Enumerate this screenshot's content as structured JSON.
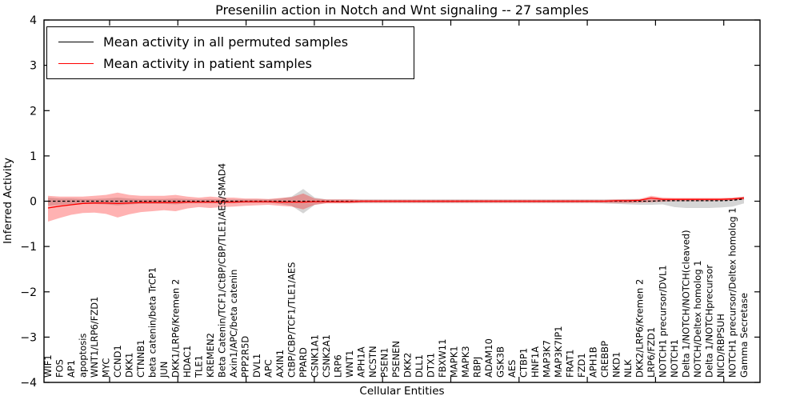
{
  "title": "Presenilin action in Notch and Wnt signaling -- 27 samples",
  "axes": {
    "ylabel": "Inferred Activity",
    "xlabel": "Cellular Entities"
  },
  "legend": {
    "position": "upper left",
    "items": [
      {
        "label": "Mean activity in all permuted samples",
        "color": "#000000"
      },
      {
        "label": "Mean activity in patient samples",
        "color": "#ff0000"
      }
    ]
  },
  "chart_data": {
    "type": "line",
    "title": "Presenilin action in Notch and Wnt signaling -- 27 samples",
    "xlabel": "Cellular Entities",
    "ylabel": "Inferred Activity",
    "ylim": [
      -4,
      4
    ],
    "yticks": [
      -4,
      -3,
      -2,
      -1,
      0,
      1,
      2,
      3,
      4
    ],
    "grid": false,
    "legend_position": "upper left",
    "categories": [
      "WIF1",
      "FOS",
      "AP1",
      "apoptosis",
      "WNT1/LRP6/FZD1",
      "MYC",
      "CCND1",
      "DKK1",
      "CTNNB1",
      "beta catenin/beta TrCP1",
      "JUN",
      "DKK1/LRP6/Kremen 2",
      "HDAC1",
      "TLE1",
      "KREMEN2",
      "Beta Catenin/TCF1/CtBP/CBP/TLE1/AES/SMAD4",
      "Axin1/APC/beta catenin",
      "PPP2R5D",
      "DVL1",
      "APC",
      "AXIN1",
      "CtBP/CBP/TCF1/TLE1/AES",
      "PPARD",
      "CSNK1A1",
      "CSNK2A1",
      "LRP6",
      "WNT1",
      "APH1A",
      "NCSTN",
      "PSEN1",
      "PSENEN",
      "DKK2",
      "DLL1",
      "DTX1",
      "FBXW11",
      "MAPK1",
      "MAPK3",
      "RBPJ",
      "ADAM10",
      "GSK3B",
      "AES",
      "CTBP1",
      "HNF1A",
      "MAP3K7",
      "MAP3K7IP1",
      "FRAT1",
      "FZD1",
      "APH1B",
      "CREBBP",
      "NKD1",
      "NLK",
      "DKK2/LRP6/Kremen 2",
      "LRP6/FZD1",
      "NOTCH1 precursor/DVL1",
      "NOTCH1",
      "Delta 1/NOTCH/NOTCH(cleaved)",
      "NOTCH/Deltex homolog 1",
      "Delta 1/NOTCHprecursor",
      "NICD/RBPSUH",
      "NOTCH1 precursor/Deltex homolog 1",
      "Gamma Secretase"
    ],
    "series": [
      {
        "name": "Mean activity in all permuted samples",
        "color": "#000000",
        "style": "dashed",
        "band_color": "#888888",
        "band_opacity": 0.35,
        "values": [
          0,
          0,
          0,
          0,
          0,
          0,
          0,
          0,
          0,
          0,
          0,
          0,
          0,
          0,
          0,
          0,
          0,
          0,
          0,
          0,
          0,
          0,
          0,
          0,
          0,
          0,
          0,
          0,
          0,
          0,
          0,
          0,
          0,
          0,
          0,
          0,
          0,
          0,
          0,
          0,
          0,
          0,
          0,
          0,
          0,
          0,
          0,
          0,
          0,
          0,
          0,
          0,
          0,
          0.01,
          0.01,
          0.01,
          0.01,
          0.01,
          0.01,
          0.02,
          0.05
        ],
        "band_upper": [
          0.08,
          0.06,
          0.06,
          0.05,
          0.05,
          0.06,
          0.08,
          0.06,
          0.05,
          0.05,
          0.05,
          0.06,
          0.05,
          0.04,
          0.05,
          0.04,
          0.04,
          0.04,
          0.04,
          0.04,
          0.06,
          0.1,
          0.27,
          0.08,
          0.04,
          0.04,
          0.04,
          0.04,
          0.04,
          0.04,
          0.04,
          0.04,
          0.04,
          0.04,
          0.04,
          0.04,
          0.04,
          0.04,
          0.04,
          0.04,
          0.04,
          0.04,
          0.04,
          0.04,
          0.04,
          0.04,
          0.04,
          0.04,
          0.04,
          0.04,
          0.05,
          0.05,
          0.05,
          0.05,
          0.05,
          0.05,
          0.05,
          0.05,
          0.05,
          0.06,
          0.1
        ],
        "band_lower": [
          -0.1,
          -0.08,
          -0.07,
          -0.06,
          -0.06,
          -0.07,
          -0.09,
          -0.07,
          -0.06,
          -0.06,
          -0.06,
          -0.07,
          -0.05,
          -0.05,
          -0.05,
          -0.05,
          -0.05,
          -0.04,
          -0.04,
          -0.04,
          -0.06,
          -0.1,
          -0.27,
          -0.08,
          -0.04,
          -0.04,
          -0.04,
          -0.04,
          -0.04,
          -0.04,
          -0.04,
          -0.04,
          -0.04,
          -0.04,
          -0.04,
          -0.04,
          -0.04,
          -0.04,
          -0.04,
          -0.04,
          -0.04,
          -0.04,
          -0.04,
          -0.04,
          -0.04,
          -0.04,
          -0.04,
          -0.04,
          -0.05,
          -0.06,
          -0.07,
          -0.08,
          -0.08,
          -0.07,
          -0.13,
          -0.15,
          -0.15,
          -0.15,
          -0.14,
          -0.12,
          -0.05
        ]
      },
      {
        "name": "Mean activity in patient samples",
        "color": "#ff0000",
        "style": "solid",
        "band_color": "#ff0000",
        "band_opacity": 0.3,
        "values": [
          -0.15,
          -0.11,
          -0.08,
          -0.05,
          -0.04,
          -0.04,
          -0.05,
          -0.04,
          -0.03,
          -0.03,
          -0.03,
          -0.03,
          -0.02,
          -0.02,
          -0.02,
          -0.02,
          -0.02,
          -0.01,
          -0.01,
          -0.01,
          -0.02,
          -0.02,
          -0.02,
          -0.01,
          -0.01,
          -0.01,
          -0.01,
          0,
          0,
          0,
          0,
          0,
          0,
          0,
          0,
          0,
          0,
          0,
          0,
          0,
          0,
          0,
          0,
          0,
          0,
          0,
          0,
          0,
          0,
          0.01,
          0.01,
          0.02,
          0.07,
          0.04,
          0.04,
          0.04,
          0.04,
          0.04,
          0.04,
          0.05,
          0.07
        ],
        "band_upper": [
          0.12,
          0.1,
          0.1,
          0.1,
          0.12,
          0.14,
          0.19,
          0.14,
          0.12,
          0.12,
          0.12,
          0.14,
          0.1,
          0.08,
          0.1,
          0.08,
          0.08,
          0.06,
          0.06,
          0.05,
          0.07,
          0.09,
          0.17,
          0.06,
          0.04,
          0.04,
          0.04,
          0.03,
          0.03,
          0.03,
          0.03,
          0.03,
          0.03,
          0.03,
          0.03,
          0.03,
          0.03,
          0.03,
          0.03,
          0.03,
          0.03,
          0.03,
          0.03,
          0.03,
          0.03,
          0.03,
          0.03,
          0.03,
          0.03,
          0.04,
          0.04,
          0.05,
          0.12,
          0.08,
          0.07,
          0.07,
          0.07,
          0.07,
          0.07,
          0.08,
          0.1
        ],
        "band_lower": [
          -0.45,
          -0.37,
          -0.3,
          -0.26,
          -0.25,
          -0.28,
          -0.36,
          -0.29,
          -0.24,
          -0.22,
          -0.2,
          -0.22,
          -0.16,
          -0.13,
          -0.15,
          -0.13,
          -0.12,
          -0.1,
          -0.09,
          -0.08,
          -0.1,
          -0.12,
          -0.18,
          -0.08,
          -0.05,
          -0.05,
          -0.05,
          -0.04,
          -0.04,
          -0.04,
          -0.04,
          -0.04,
          -0.04,
          -0.04,
          -0.04,
          -0.04,
          -0.04,
          -0.04,
          -0.04,
          -0.04,
          -0.04,
          -0.04,
          -0.04,
          -0.04,
          -0.04,
          -0.04,
          -0.04,
          -0.04,
          -0.04,
          -0.04,
          -0.04,
          -0.03,
          -0.02,
          -0.01,
          0,
          0,
          0,
          0,
          0.01,
          0.02,
          0.03
        ]
      }
    ]
  }
}
